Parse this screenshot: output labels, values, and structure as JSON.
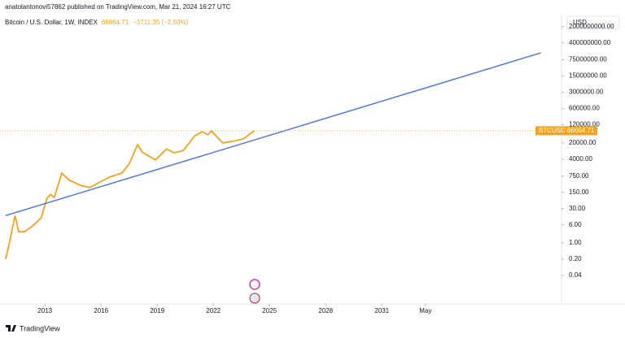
{
  "header": {
    "author": "anatolantonovi57862 published on TradingView.com, Mar 21, 2024 16:27 UTC"
  },
  "footer": {
    "brand": "TradingView"
  },
  "chart_data": {
    "type": "line",
    "legend": {
      "symbol": "Bitcoin / U.S. Dollar, 1W, INDEX",
      "change": "−1711.35 (−2.50%)"
    },
    "currency": "USD",
    "log_scale": true,
    "series": [
      {
        "name": "BTCUSD",
        "color": "#f7a21b",
        "x": [
          2010.9,
          2011.1,
          2011.4,
          2011.6,
          2011.9,
          2012.3,
          2012.8,
          2013.1,
          2013.3,
          2013.5,
          2013.9,
          2014.3,
          2014.9,
          2015.4,
          2015.9,
          2016.5,
          2017.1,
          2017.5,
          2017.95,
          2018.2,
          2018.9,
          2019.5,
          2019.9,
          2020.4,
          2021.0,
          2021.4,
          2021.7,
          2021.9,
          2022.5,
          2023.2,
          2023.6,
          2024.2
        ],
        "values": [
          0.2,
          1,
          15,
          3,
          3,
          5,
          12,
          80,
          120,
          90,
          1000,
          500,
          300,
          240,
          400,
          700,
          1000,
          2500,
          17000,
          8000,
          3700,
          11000,
          7500,
          9500,
          40000,
          60000,
          45000,
          65000,
          20000,
          25000,
          30000,
          66664.71
        ]
      },
      {
        "color": "#4a6fe0",
        "x": [
          2010.9,
          2039.5
        ],
        "values": [
          15,
          150000000
        ]
      }
    ],
    "xlim": [
      2010.6,
      2040.6
    ],
    "xticks": [
      2013,
      2016,
      2019,
      2022,
      2025,
      2028,
      2031,
      {
        "value": 2033.33,
        "label": "May"
      }
    ],
    "ylim": [
      0.0028,
      2500000000
    ],
    "yticks": [
      {
        "value": 0.04,
        "label": "0.04"
      },
      {
        "value": 0.2,
        "label": "0.20"
      },
      {
        "value": 1,
        "label": "1.00"
      },
      {
        "value": 6,
        "label": "6.00"
      },
      {
        "value": 30,
        "label": "30.00"
      },
      {
        "value": 150,
        "label": "150.00"
      },
      {
        "value": 750,
        "label": "750.00"
      },
      {
        "value": 4000,
        "label": "4000.00"
      },
      {
        "value": 20000,
        "label": "20000.00"
      },
      {
        "value": 120000,
        "label": "120000.00"
      },
      {
        "value": 600000,
        "label": "600000.00"
      },
      {
        "value": 3000000,
        "label": "3000000.00"
      },
      {
        "value": 15000000,
        "label": "15000000.00"
      },
      {
        "value": 75000000,
        "label": "75000000.00"
      },
      {
        "value": 400000000,
        "label": "400000000.00"
      },
      {
        "value": 2000000000,
        "label": "2000000000.00"
      }
    ]
  }
}
